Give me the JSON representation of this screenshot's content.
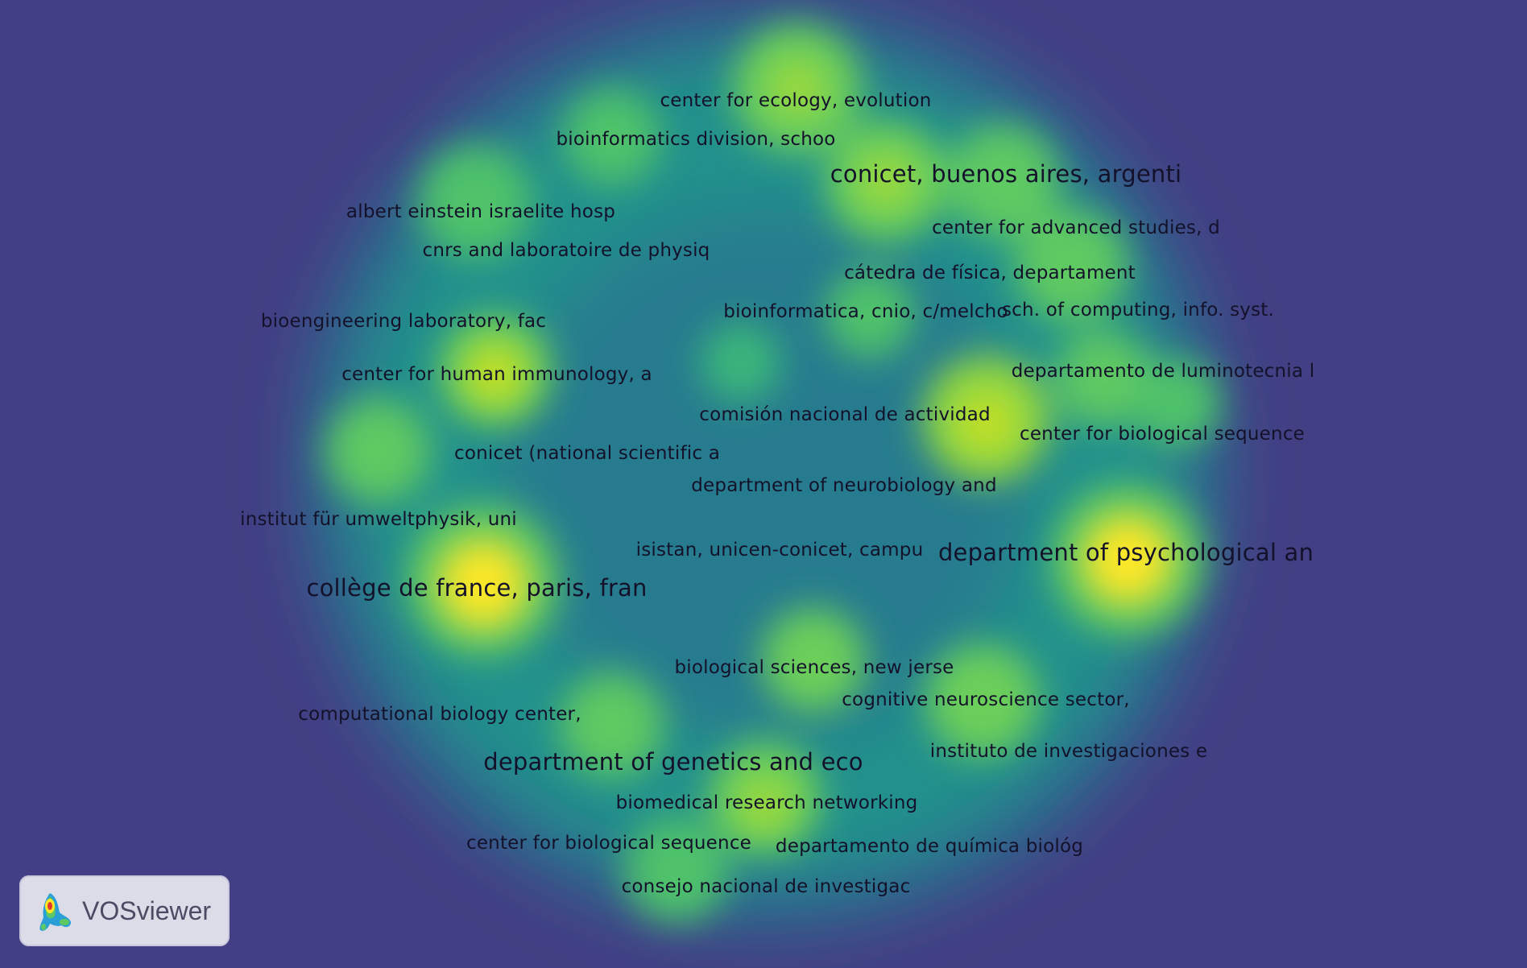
{
  "app": {
    "name": "VOSviewer"
  },
  "view": {
    "type": "density-visualization",
    "colormap": [
      "#433f84",
      "#2d6f8e",
      "#21918c",
      "#5ec962",
      "#fde725"
    ]
  },
  "labels": [
    {
      "text": "center for ecology, evolution",
      "big": false
    },
    {
      "text": "bioinformatics division, schoo",
      "big": false
    },
    {
      "text": "conicet, buenos aires, argenti",
      "big": true
    },
    {
      "text": "albert einstein israelite hosp",
      "big": false
    },
    {
      "text": "center for advanced studies, d",
      "big": false
    },
    {
      "text": "cnrs and laboratoire de physiq",
      "big": false
    },
    {
      "text": "cátedra de física, departament",
      "big": false
    },
    {
      "text": "bioengineering laboratory, fac",
      "big": false
    },
    {
      "text": "bioinformatica, cnio, c/melcho",
      "big": false
    },
    {
      "text": "sch. of computing, info. syst.",
      "big": false
    },
    {
      "text": "center for human immunology, a",
      "big": false
    },
    {
      "text": "departamento de luminotecnia l",
      "big": false
    },
    {
      "text": "comisión nacional de actividad",
      "big": false
    },
    {
      "text": "center for biological sequence",
      "big": false
    },
    {
      "text": "conicet (national scientific a",
      "big": false
    },
    {
      "text": "department of neurobiology and",
      "big": false
    },
    {
      "text": "institut für umweltphysik, uni",
      "big": false
    },
    {
      "text": "isistan, unicen-conicet, campu",
      "big": false
    },
    {
      "text": "department of psychological an",
      "big": true
    },
    {
      "text": "collège de france, paris, fran",
      "big": true
    },
    {
      "text": "biological sciences, new jerse",
      "big": false
    },
    {
      "text": "cognitive neuroscience sector,",
      "big": false
    },
    {
      "text": "computational biology center,",
      "big": false
    },
    {
      "text": "department of genetics and eco",
      "big": true
    },
    {
      "text": "instituto de investigaciones e",
      "big": false
    },
    {
      "text": "biomedical research networking",
      "big": false
    },
    {
      "text": "center for biological sequence",
      "big": false
    },
    {
      "text": "departamento de química biológ",
      "big": false
    },
    {
      "text": "consejo nacional de investigac",
      "big": false
    }
  ]
}
